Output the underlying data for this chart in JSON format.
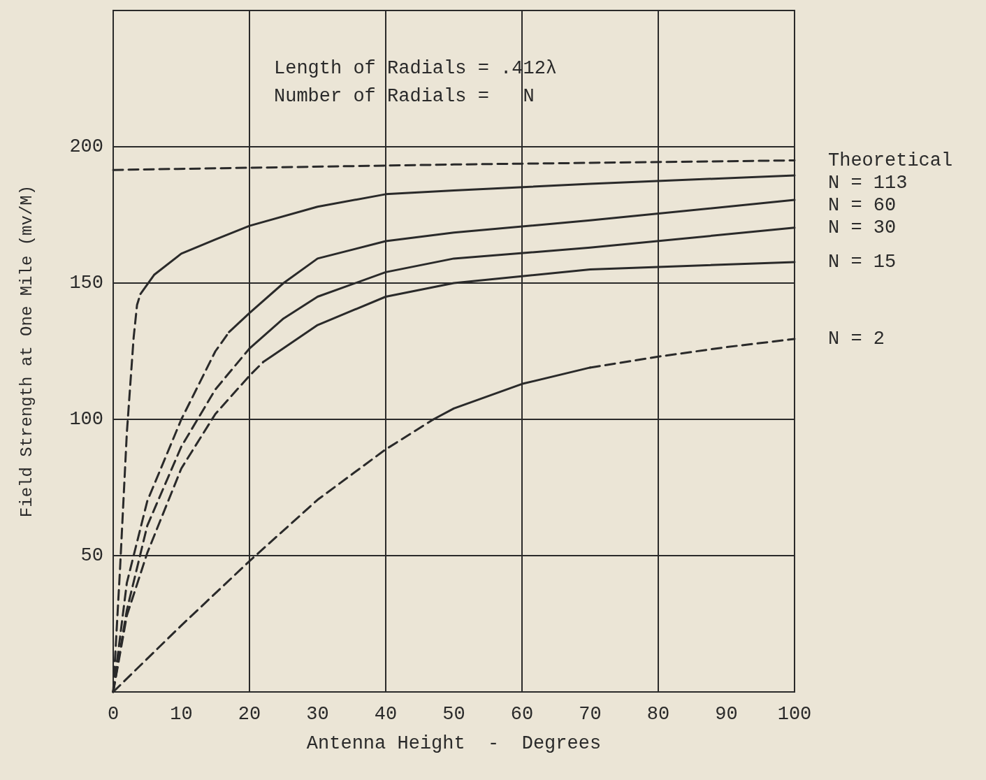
{
  "chart_data": {
    "type": "line",
    "xlabel": "Antenna Height  -  Degrees",
    "ylabel": "Field Strength at One Mile (mv/M)",
    "annotations": [
      "Length of Radials = .412λ",
      "Number of Radials =   N"
    ],
    "xlim": [
      0,
      100
    ],
    "xticks": [
      0,
      10,
      20,
      30,
      40,
      50,
      60,
      70,
      80,
      90,
      100
    ],
    "ylim": [
      0,
      250
    ],
    "yticks": [
      50,
      100,
      150,
      200
    ],
    "grid": true,
    "marker": "none",
    "legend": false,
    "series": [
      {
        "name": "Theoretical",
        "color": "#2a2a2a",
        "line_style": "dashed",
        "x": [
          0,
          50,
          100
        ],
        "values": [
          191.5,
          193.5,
          195
        ]
      },
      {
        "color": "#2a2a2a",
        "line_style": "dashed",
        "x": [
          0,
          1,
          2,
          3,
          3.5,
          4
        ],
        "values": [
          0,
          45,
          95,
          130,
          142,
          146
        ]
      },
      {
        "name": "N = 113",
        "color": "#2a2a2a",
        "line_style": "solid",
        "x": [
          4,
          6,
          10,
          15,
          20,
          30,
          40,
          50,
          70,
          100
        ],
        "values": [
          146,
          153,
          160.8,
          166,
          171,
          178,
          182.6,
          184,
          186.4,
          189.5
        ]
      },
      {
        "color": "#2a2a2a",
        "line_style": "dashed",
        "x": [
          0,
          2,
          5,
          10,
          15,
          17
        ],
        "values": [
          0,
          40,
          70,
          100,
          125,
          132
        ]
      },
      {
        "name": "N = 60",
        "color": "#2a2a2a",
        "line_style": "solid",
        "x": [
          17,
          20,
          25,
          30,
          40,
          50,
          70,
          100
        ],
        "values": [
          132,
          139,
          150,
          159,
          165.4,
          168.5,
          173,
          180.5
        ]
      },
      {
        "color": "#2a2a2a",
        "line_style": "dashed",
        "x": [
          0,
          2,
          5,
          10,
          15,
          20
        ],
        "values": [
          0,
          30,
          61,
          90,
          111,
          126
        ]
      },
      {
        "name": "N = 30",
        "color": "#2a2a2a",
        "line_style": "solid",
        "x": [
          20,
          25,
          30,
          40,
          50,
          70,
          100
        ],
        "values": [
          126,
          137,
          145,
          154,
          159,
          163,
          170.3
        ]
      },
      {
        "color": "#2a2a2a",
        "line_style": "dashed",
        "x": [
          0,
          2,
          5,
          10,
          15,
          20,
          22
        ],
        "values": [
          0,
          28,
          51,
          82,
          102,
          116,
          121
        ]
      },
      {
        "name": "N = 15",
        "color": "#2a2a2a",
        "line_style": "solid",
        "x": [
          22,
          30,
          40,
          50,
          70,
          100
        ],
        "values": [
          121,
          134.6,
          145,
          150,
          155,
          157.7
        ]
      },
      {
        "color": "#2a2a2a",
        "line_style": "dashed",
        "x": [
          0,
          10,
          20,
          30,
          40,
          47
        ],
        "values": [
          0,
          24.4,
          48,
          70.5,
          89,
          100
        ]
      },
      {
        "color": "#2a2a2a",
        "line_style": "solid",
        "x": [
          47,
          50,
          60,
          70
        ],
        "values": [
          100,
          104,
          113,
          119
        ]
      },
      {
        "name": "N = 2",
        "color": "#2a2a2a",
        "line_style": "dashed",
        "x": [
          70,
          80,
          90,
          100
        ],
        "values": [
          119,
          123,
          126.5,
          129.5
        ]
      }
    ]
  }
}
